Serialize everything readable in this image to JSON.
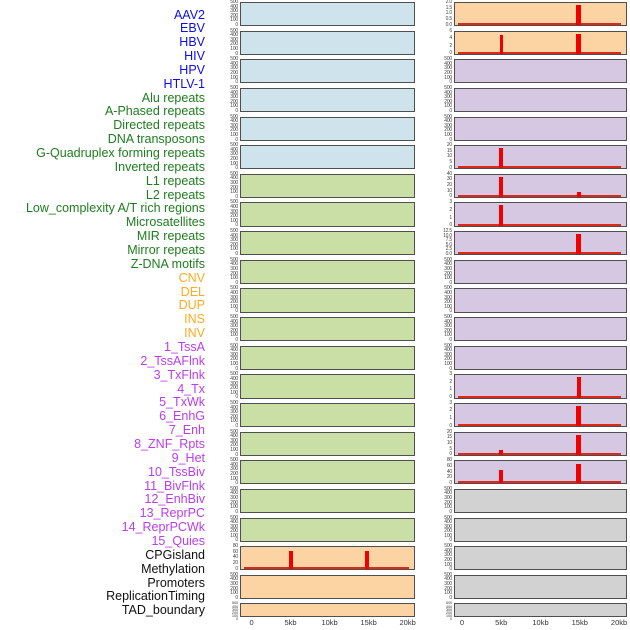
{
  "figure_title": "genomic-feature-density-small-multiples",
  "colors": {
    "red_accent": "#f20000",
    "baseline_red": "#e02818",
    "panel_border": "#4f4f4f",
    "tick_text": "#454545",
    "axis_text": "#333333",
    "background": "#ffffff"
  },
  "chart_data": {
    "type": "area",
    "layout": "small-multiples, 2 columns of 22 stacked panels, shared x axis per column, track-name legend list at left",
    "x": {
      "ticks": [
        "0",
        "5kb",
        "10kb",
        "15kb",
        "20kb"
      ],
      "range_kb": [
        0,
        20
      ]
    },
    "default_yticks": [
      "500",
      "400",
      "300",
      "200",
      "100",
      "0"
    ],
    "groups": {
      "virus": {
        "label_color": "#0d0deb",
        "panel_color": "#cfe3ec"
      },
      "repeats": {
        "label_color": "#1e7d1e",
        "panel_color": "#c9dfa5"
      },
      "structural_variants": {
        "label_color": "#ffa91e",
        "panel_color": "#fcd4a4"
      },
      "chromatin_states": {
        "label_color": "#bb3cec",
        "panel_color": "#d6c8e2"
      },
      "other": {
        "label_color": "#111111",
        "panel_color": "#d2d2d2"
      }
    },
    "tracks": [
      {
        "label": "AAV2",
        "group": "virus"
      },
      {
        "label": "EBV",
        "group": "virus"
      },
      {
        "label": "HBV",
        "group": "virus"
      },
      {
        "label": "HIV",
        "group": "virus"
      },
      {
        "label": "HPV",
        "group": "virus"
      },
      {
        "label": "HTLV-1",
        "group": "virus"
      },
      {
        "label": "Alu repeats",
        "group": "repeats"
      },
      {
        "label": "A-Phased repeats",
        "group": "repeats"
      },
      {
        "label": "Directed repeats",
        "group": "repeats"
      },
      {
        "label": "DNA transposons",
        "group": "repeats"
      },
      {
        "label": "G-Quadruplex forming repeats",
        "group": "repeats"
      },
      {
        "label": "Inverted repeats",
        "group": "repeats"
      },
      {
        "label": "L1 repeats",
        "group": "repeats"
      },
      {
        "label": "L2 repeats",
        "group": "repeats"
      },
      {
        "label": "Low_complexity A/T rich regions",
        "group": "repeats"
      },
      {
        "label": "Microsatellites",
        "group": "repeats"
      },
      {
        "label": "MIR repeats",
        "group": "repeats"
      },
      {
        "label": "Mirror repeats",
        "group": "repeats"
      },
      {
        "label": "Z-DNA motifs",
        "group": "repeats"
      },
      {
        "label": "CNV",
        "group": "structural_variants",
        "yticks": [
          "80",
          "60",
          "40",
          "20",
          "0"
        ],
        "baseline": true,
        "spikes": [
          {
            "kb": 5,
            "value": 74,
            "w": 4
          },
          {
            "kb": 15,
            "value": 74,
            "w": 4
          }
        ]
      },
      {
        "label": "DEL",
        "group": "structural_variants"
      },
      {
        "label": "DUP",
        "group": "structural_variants"
      },
      {
        "label": "INS",
        "group": "structural_variants",
        "yticks": [
          "2.0",
          "1.5",
          "1.0",
          "0.5",
          "0.0"
        ],
        "baseline": true,
        "spikes": [
          {
            "kb": 15,
            "value": 2.0,
            "w": 5
          }
        ]
      },
      {
        "label": "INV",
        "group": "structural_variants",
        "yticks": [
          "6",
          "4",
          "2",
          "0"
        ],
        "baseline": true,
        "spikes": [
          {
            "kb": 5,
            "value": 5.6,
            "w": 3.5
          },
          {
            "kb": 15,
            "value": 6,
            "w": 5
          }
        ]
      },
      {
        "label": "1_TssA",
        "group": "chromatin_states"
      },
      {
        "label": "2_TssAFlnk",
        "group": "chromatin_states"
      },
      {
        "label": "3_TxFlnk",
        "group": "chromatin_states"
      },
      {
        "label": "4_Tx",
        "group": "chromatin_states",
        "yticks": [
          "20",
          "15",
          "10",
          "5",
          "0"
        ],
        "baseline": true,
        "spikes": [
          {
            "kb": 5,
            "value": 20,
            "w": 4
          }
        ]
      },
      {
        "label": "5_TxWk",
        "group": "chromatin_states",
        "yticks": [
          "40",
          "30",
          "20",
          "10",
          "0"
        ],
        "baseline": true,
        "spikes": [
          {
            "kb": 5,
            "value": 40,
            "w": 4
          },
          {
            "kb": 15,
            "value": 10,
            "w": 4
          }
        ]
      },
      {
        "label": "6_EnhG",
        "group": "chromatin_states",
        "yticks": [
          "3",
          "2",
          "1",
          "0"
        ],
        "baseline": true,
        "spikes": [
          {
            "kb": 5,
            "value": 3,
            "w": 4
          }
        ]
      },
      {
        "label": "7_Enh",
        "group": "chromatin_states",
        "yticks": [
          "12.5",
          "10.0",
          "7.5",
          "5.0",
          "2.5",
          "0.0"
        ],
        "baseline": true,
        "spikes": [
          {
            "kb": 15,
            "value": 12.5,
            "w": 5
          }
        ]
      },
      {
        "label": "8_ZNF_Rpts",
        "group": "chromatin_states"
      },
      {
        "label": "9_Het",
        "group": "chromatin_states"
      },
      {
        "label": "10_TssBiv",
        "group": "chromatin_states"
      },
      {
        "label": "11_BivFlnk",
        "group": "chromatin_states"
      },
      {
        "label": "12_EnhBiv",
        "group": "chromatin_states",
        "yticks": [
          "3",
          "2",
          "1",
          "0"
        ],
        "baseline": true,
        "spikes": [
          {
            "kb": 15,
            "value": 3,
            "w": 4
          }
        ]
      },
      {
        "label": "13_ReprPC",
        "group": "chromatin_states",
        "yticks": [
          "3",
          "2",
          "1",
          "0"
        ],
        "baseline": true,
        "spikes": [
          {
            "kb": 15,
            "value": 3,
            "w": 5
          }
        ]
      },
      {
        "label": "14_ReprPCWk",
        "group": "chromatin_states",
        "yticks": [
          "20",
          "15",
          "10",
          "5",
          "0"
        ],
        "baseline": true,
        "spikes": [
          {
            "kb": 5,
            "value": 5,
            "w": 4
          },
          {
            "kb": 15,
            "value": 20,
            "w": 5
          }
        ]
      },
      {
        "label": "15_Quies",
        "group": "chromatin_states",
        "yticks": [
          "80",
          "60",
          "40",
          "20",
          "0"
        ],
        "baseline": true,
        "spikes": [
          {
            "kb": 5,
            "value": 55,
            "w": 4
          },
          {
            "kb": 15,
            "value": 76,
            "w": 5
          }
        ]
      },
      {
        "label": "CPGisland",
        "group": "other"
      },
      {
        "label": "Methylation",
        "group": "other"
      },
      {
        "label": "Promoters",
        "group": "other"
      },
      {
        "label": "ReplicationTiming",
        "group": "other"
      },
      {
        "label": "TAD_boundary",
        "group": "other"
      }
    ]
  }
}
